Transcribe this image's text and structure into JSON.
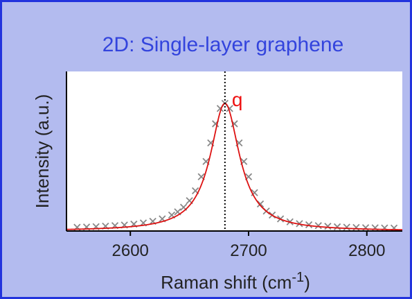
{
  "chart_data": {
    "type": "scatter",
    "title": "2D: Single-layer graphene",
    "xlabel": "Raman shift (cm",
    "xlabel_superscript": "-1",
    "xlabel_suffix": ")",
    "ylabel": "Intensity (a.u.)",
    "xlim": [
      2546,
      2830
    ],
    "ylim": [
      0,
      1.25
    ],
    "xticks": [
      2600,
      2700,
      2800
    ],
    "y_ticklabels": "none",
    "grid": false,
    "annotation": {
      "text": "q",
      "x": 2680,
      "color": "#ee1111",
      "line_style": "dotted vertical"
    },
    "series": [
      {
        "kind": "measured",
        "marker": "x",
        "color": "#888888",
        "x": [
          2555,
          2563,
          2571,
          2579,
          2587,
          2595,
          2603,
          2611,
          2619,
          2627,
          2635,
          2640,
          2645,
          2650,
          2655,
          2660,
          2664,
          2668,
          2672,
          2676,
          2680,
          2684,
          2688,
          2692,
          2696,
          2700,
          2705,
          2710,
          2715,
          2720,
          2727,
          2735,
          2743,
          2751,
          2759,
          2767,
          2775,
          2783,
          2791,
          2799,
          2807,
          2815,
          2823
        ],
        "y": [
          0.029,
          0.031,
          0.034,
          0.038,
          0.042,
          0.047,
          0.054,
          0.063,
          0.076,
          0.095,
          0.125,
          0.15,
          0.186,
          0.238,
          0.315,
          0.425,
          0.545,
          0.69,
          0.84,
          0.96,
          1.0,
          0.96,
          0.84,
          0.69,
          0.545,
          0.425,
          0.3,
          0.212,
          0.156,
          0.125,
          0.095,
          0.072,
          0.058,
          0.049,
          0.042,
          0.037,
          0.033,
          0.03,
          0.028,
          0.026,
          0.025,
          0.024,
          0.023
        ]
      },
      {
        "kind": "fit",
        "function": "lorentzian",
        "color": "#dd1111",
        "center": 2680,
        "fwhm": 30,
        "amplitude": 1.0,
        "baseline": 0.0
      }
    ]
  },
  "colors": {
    "panel_background": "#b3bbef",
    "panel_border": "#2233dd",
    "title": "#3344dd",
    "axis_text": "#222222",
    "plot_background": "#ffffff"
  }
}
